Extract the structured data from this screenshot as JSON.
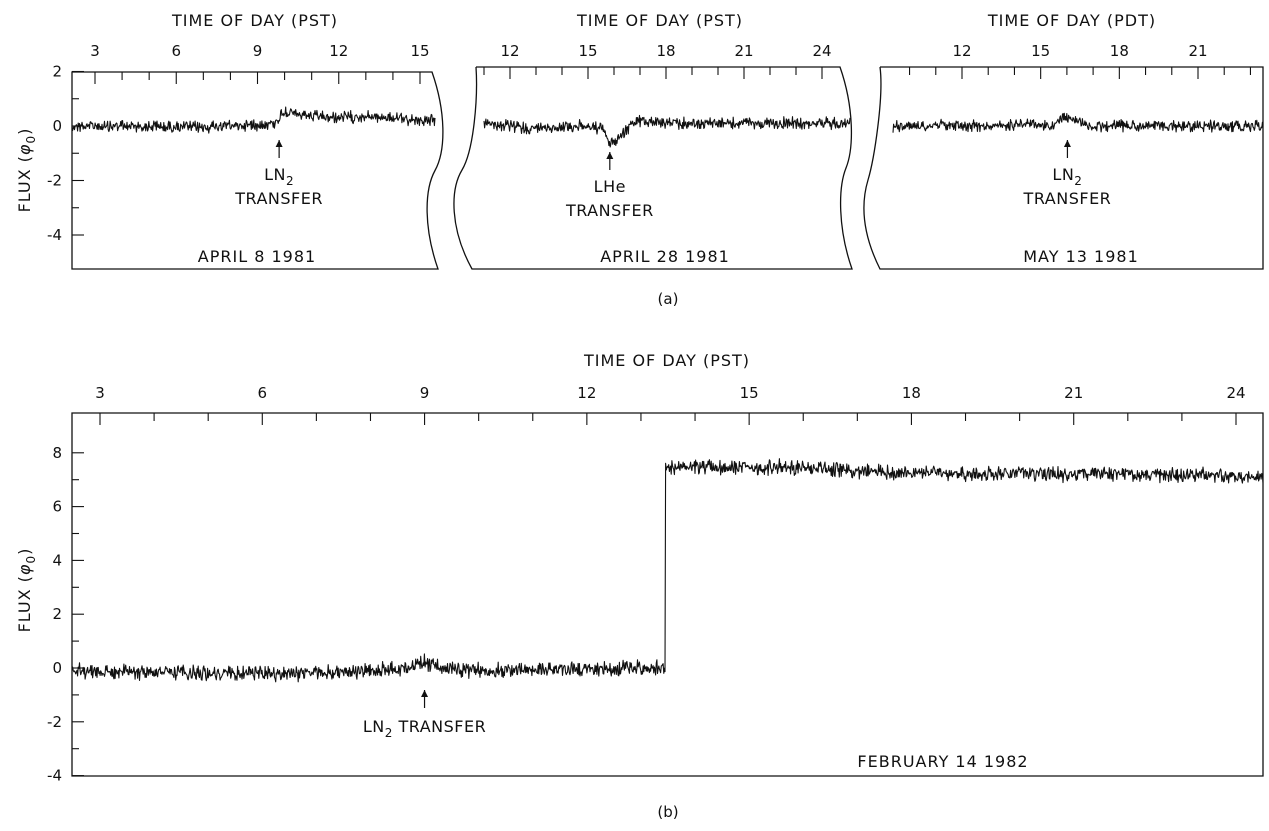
{
  "chart_data": [
    {
      "type": "line",
      "panel": "a",
      "panel_label": "(a)",
      "xlabel": "TIME OF DAY (PST)",
      "ylabel_text": "FLUX (",
      "ylabel_symbol": "φ",
      "ylabel_subscript": "0",
      "ylabel_close": ")",
      "xlim": [
        0,
        17
      ],
      "ylim": [
        -5,
        2
      ],
      "xticks": [
        3,
        6,
        9,
        12,
        15
      ],
      "yticks": [
        2,
        0,
        -2,
        -4
      ],
      "date_label": "APRIL 8 1981",
      "annotation": {
        "x": 9.7,
        "line1": "LN",
        "line1_sub": "2",
        "line2": "TRANSFER"
      },
      "series": [
        {
          "x": [
            0,
            3,
            6,
            8.5,
            9.5,
            9.8,
            10.1,
            10.5,
            12,
            14,
            16.5
          ],
          "y": [
            0,
            0,
            -0.05,
            0.05,
            0.1,
            0.4,
            0.55,
            0.4,
            0.3,
            0.35,
            0.2
          ]
        }
      ]
    },
    {
      "type": "line",
      "panel": "a",
      "xlabel": "TIME OF DAY (PST)",
      "xlim": [
        10,
        26
      ],
      "ylim": [
        -5,
        2
      ],
      "xticks": [
        12,
        15,
        18,
        21,
        24
      ],
      "date_label": "APRIL 28 1981",
      "annotation": {
        "x": 15.5,
        "line1": "LHe",
        "line1_sub": "",
        "line2": "TRANSFER"
      },
      "series": [
        {
          "x": [
            10,
            12,
            14,
            15.2,
            15.5,
            15.9,
            16.5,
            17,
            18,
            21,
            24,
            25.8
          ],
          "y": [
            0.1,
            -0.1,
            0,
            -0.1,
            -0.7,
            -0.4,
            0.1,
            0.2,
            0.1,
            0.1,
            0.1,
            0.1
          ]
        }
      ]
    },
    {
      "type": "line",
      "panel": "a",
      "xlabel": "TIME OF DAY (PDT)",
      "xlim": [
        9,
        23
      ],
      "ylim": [
        -5,
        2
      ],
      "xticks": [
        12,
        15,
        18,
        21
      ],
      "date_label": "MAY 13 1981",
      "annotation": {
        "x": 15.6,
        "line1": "LN",
        "line1_sub": "2",
        "line2": "TRANSFER"
      },
      "series": [
        {
          "x": [
            9,
            11,
            13,
            14.2,
            15,
            15.5,
            15.9,
            16.4,
            18,
            20,
            23
          ],
          "y": [
            0,
            0.05,
            0,
            0.15,
            -0.1,
            0.4,
            0.2,
            0,
            0,
            0,
            0
          ]
        }
      ]
    },
    {
      "type": "line",
      "panel": "b",
      "panel_label": "(b)",
      "xlabel": "TIME OF DAY (PST)",
      "ylabel_text": "FLUX (",
      "ylabel_symbol": "φ",
      "ylabel_subscript": "0",
      "ylabel_close": ")",
      "xlim": [
        1.5,
        26.5
      ],
      "ylim": [
        -4,
        9
      ],
      "xticks": [
        3,
        6,
        9,
        12,
        15,
        18,
        21,
        24
      ],
      "yticks": [
        8,
        6,
        4,
        2,
        0,
        -2,
        -4
      ],
      "date_label": "FEBRUARY 14 1982",
      "annotation": {
        "x": 8.9,
        "line1": "LN",
        "line1_sub": "2",
        "line2": "TRANSFER"
      },
      "series": [
        {
          "x": [
            1.5,
            4,
            7,
            8.5,
            8.9,
            9.3,
            10,
            12,
            13.95,
            13.96,
            16,
            16.5,
            18,
            21,
            24,
            26.5
          ],
          "y": [
            -0.1,
            -0.2,
            -0.2,
            0,
            0.2,
            0,
            -0.1,
            -0.05,
            0,
            7.45,
            7.45,
            7.5,
            7.3,
            7.2,
            7.2,
            7.1
          ]
        }
      ]
    }
  ]
}
